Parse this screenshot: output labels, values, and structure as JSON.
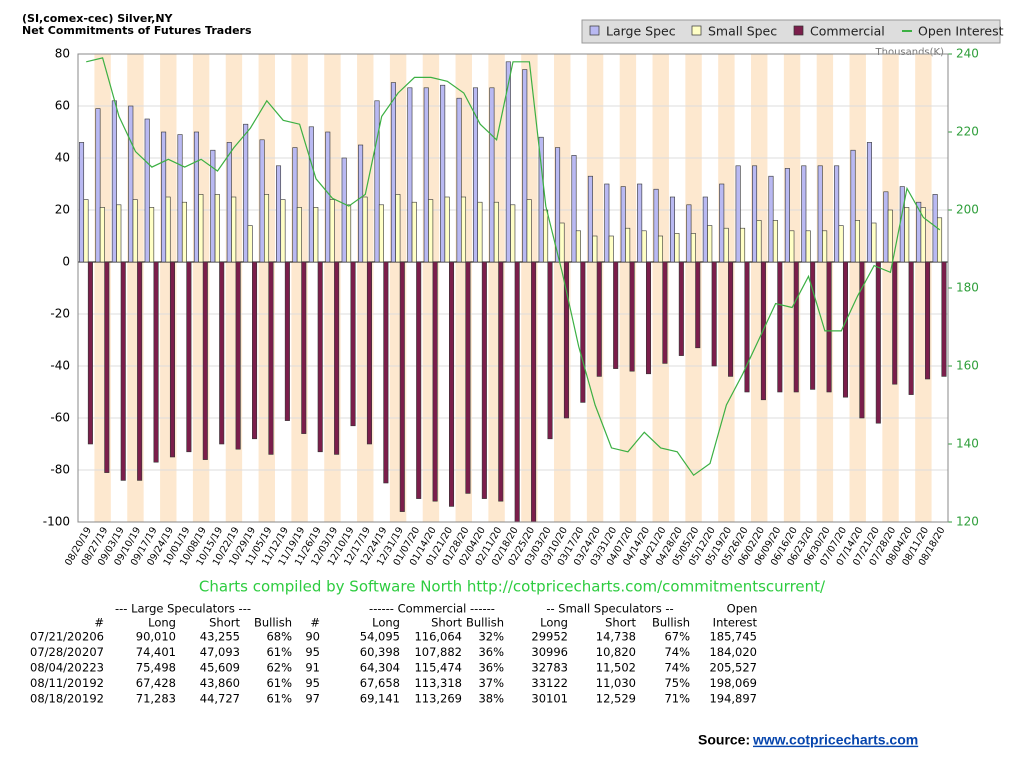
{
  "chart_data": {
    "type": "bar",
    "title": "(SI,comex-cec) Silver,NY",
    "subtitle": "Net Commitments of Futures Traders",
    "y2_label": "Thousands(K)",
    "credit": "Charts compiled by Software North  http://cotpricecharts.com/commitmentscurrent/",
    "categories": [
      "08/20/19",
      "08/27/19",
      "09/03/19",
      "09/10/19",
      "09/17/19",
      "09/24/19",
      "10/01/19",
      "10/08/19",
      "10/15/19",
      "10/22/19",
      "10/29/19",
      "11/05/19",
      "11/12/19",
      "11/19/19",
      "11/26/19",
      "12/03/19",
      "12/10/19",
      "12/17/19",
      "12/24/19",
      "12/31/19",
      "01/07/20",
      "01/14/20",
      "01/21/20",
      "01/28/20",
      "02/04/20",
      "02/11/20",
      "02/18/20",
      "02/25/20",
      "03/03/20",
      "03/10/20",
      "03/17/20",
      "03/24/20",
      "03/31/20",
      "04/07/20",
      "04/14/20",
      "04/21/20",
      "04/28/20",
      "05/05/20",
      "05/12/20",
      "05/19/20",
      "05/26/20",
      "06/02/20",
      "06/09/20",
      "06/16/20",
      "06/23/20",
      "06/30/20",
      "07/07/20",
      "07/14/20",
      "07/21/20",
      "07/28/20",
      "08/04/20",
      "08/11/20",
      "08/18/20"
    ],
    "series": [
      {
        "name": "Large Spec",
        "color": "#b9b9f2",
        "values": [
          46,
          59,
          62,
          60,
          55,
          50,
          49,
          50,
          43,
          46,
          53,
          47,
          37,
          44,
          52,
          50,
          40,
          45,
          62,
          69,
          67,
          67,
          68,
          63,
          67,
          67,
          77,
          74,
          48,
          44,
          41,
          33,
          30,
          29,
          30,
          28,
          25,
          22,
          25,
          30,
          37,
          37,
          33,
          36,
          37,
          37,
          37,
          43,
          46,
          27,
          29,
          23,
          26
        ]
      },
      {
        "name": "Small Spec",
        "color": "#ffffc6",
        "values": [
          24,
          21,
          22,
          24,
          21,
          25,
          23,
          26,
          26,
          25,
          14,
          26,
          24,
          21,
          21,
          24,
          22,
          25,
          22,
          26,
          23,
          24,
          25,
          25,
          23,
          23,
          22,
          24,
          20,
          15,
          12,
          10,
          10,
          13,
          12,
          10,
          11,
          11,
          14,
          13,
          13,
          16,
          16,
          12,
          12,
          12,
          14,
          16,
          15,
          20,
          21,
          21,
          17
        ]
      },
      {
        "name": "Commercial",
        "color": "#7b1e4b",
        "values": [
          -70,
          -81,
          -84,
          -84,
          -77,
          -75,
          -73,
          -76,
          -70,
          -72,
          -68,
          -74,
          -61,
          -66,
          -73,
          -74,
          -63,
          -70,
          -85,
          -96,
          -91,
          -92,
          -94,
          -89,
          -91,
          -92,
          -100,
          -100,
          -68,
          -60,
          -54,
          -44,
          -41,
          -42,
          -43,
          -39,
          -36,
          -33,
          -40,
          -44,
          -50,
          -53,
          -50,
          -50,
          -49,
          -50,
          -52,
          -60,
          -62,
          -47,
          -51,
          -45,
          -44
        ]
      },
      {
        "name": "Open Interest",
        "type": "line",
        "axis": "y2",
        "color": "#3cb043",
        "values": [
          238,
          239,
          224,
          215,
          211,
          213,
          211,
          213,
          210,
          216,
          221,
          228,
          223,
          222,
          208,
          203,
          201,
          204,
          224,
          230,
          234,
          234,
          233,
          230,
          222,
          218,
          238,
          238,
          201,
          184,
          165,
          150,
          139,
          138,
          143,
          139,
          138,
          132,
          135,
          150,
          158,
          167,
          176,
          175,
          183,
          169,
          169,
          178,
          185.745,
          184.02,
          205.527,
          198.069,
          194.897
        ]
      }
    ],
    "ylim": [
      -100,
      80
    ],
    "yticks": [
      -100,
      -80,
      -60,
      -40,
      -20,
      0,
      20,
      40,
      60,
      80
    ],
    "y2lim": [
      120,
      240
    ],
    "y2ticks": [
      120,
      140,
      160,
      180,
      200,
      220,
      240
    ],
    "legend": "top-right",
    "grid": true
  },
  "table": {
    "group_headers": [
      "--- Large Speculators ---",
      "------ Commercial ------",
      "-- Small Speculators --",
      "Open"
    ],
    "columns": [
      "#",
      "Long",
      "Short",
      "Bullish",
      "#",
      "Long",
      "Short",
      "Bullish",
      "Long",
      "Short",
      "Bullish",
      "Interest"
    ],
    "rows": [
      [
        "07/21/20",
        "206",
        "90,010",
        "43,255",
        "68%",
        "90",
        "54,095",
        "116,064",
        "32%",
        "29952",
        "14,738",
        "67%",
        "185,745"
      ],
      [
        "07/28/20",
        "207",
        "74,401",
        "47,093",
        "61%",
        "95",
        "60,398",
        "107,882",
        "36%",
        "30996",
        "10,820",
        "74%",
        "184,020"
      ],
      [
        "08/04/20",
        "223",
        "75,498",
        "45,609",
        "62%",
        "91",
        "64,304",
        "115,474",
        "36%",
        "32783",
        "11,502",
        "74%",
        "205,527"
      ],
      [
        "08/11/20",
        "192",
        "67,428",
        "43,860",
        "61%",
        "95",
        "67,658",
        "113,318",
        "37%",
        "33122",
        "11,030",
        "75%",
        "198,069"
      ],
      [
        "08/18/20",
        "192",
        "71,283",
        "44,727",
        "61%",
        "97",
        "69,141",
        "113,269",
        "38%",
        "30101",
        "12,529",
        "71%",
        "194,897"
      ]
    ]
  },
  "source": {
    "label": "Source:",
    "link": "www.cotpricecharts.com"
  }
}
